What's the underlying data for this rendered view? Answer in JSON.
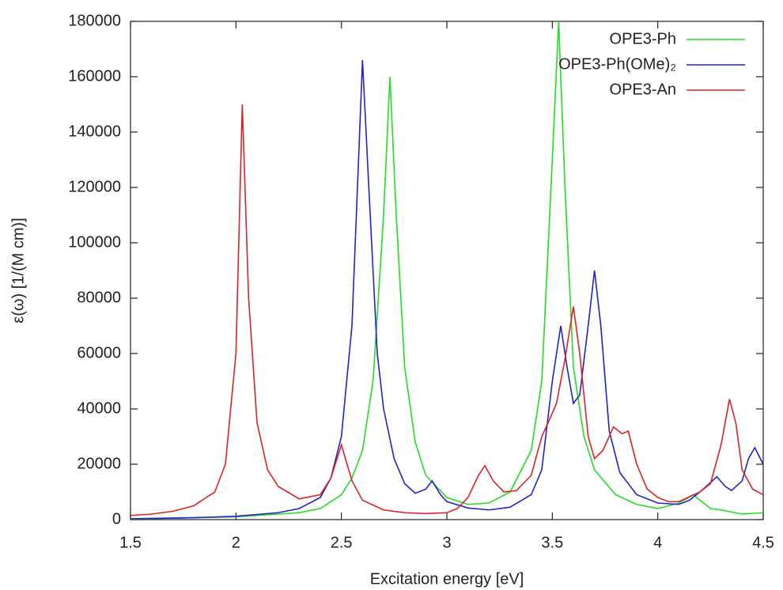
{
  "chart_data": {
    "type": "line",
    "xlabel": "Excitation energy [eV]",
    "ylabel": "ε(ω) [1/(M cm)]",
    "xlim": [
      1.5,
      4.5
    ],
    "ylim": [
      0,
      180000
    ],
    "xticks": [
      1.5,
      2,
      2.5,
      3,
      3.5,
      4,
      4.5
    ],
    "yticks": [
      0,
      20000,
      40000,
      60000,
      80000,
      100000,
      120000,
      140000,
      160000,
      180000
    ],
    "legend": "upper right",
    "series": [
      {
        "name": "OPE3-Ph",
        "color": "#22dd22",
        "x": [
          1.5,
          2.0,
          2.3,
          2.4,
          2.5,
          2.55,
          2.6,
          2.65,
          2.7,
          2.73,
          2.76,
          2.8,
          2.85,
          2.9,
          3.0,
          3.1,
          3.2,
          3.3,
          3.4,
          3.45,
          3.5,
          3.53,
          3.56,
          3.6,
          3.65,
          3.7,
          3.8,
          3.9,
          4.0,
          4.1,
          4.17,
          4.2,
          4.25,
          4.3,
          4.4,
          4.5
        ],
        "values": [
          200,
          1000,
          2500,
          4000,
          9000,
          15000,
          25000,
          50000,
          110000,
          160000,
          110000,
          55000,
          28000,
          16000,
          8000,
          5500,
          6000,
          10000,
          25000,
          50000,
          130000,
          180000,
          120000,
          55000,
          30000,
          18000,
          9000,
          5500,
          4000,
          6000,
          9000,
          7000,
          4000,
          3500,
          2000,
          2500
        ]
      },
      {
        "name": "OPE3-Ph(OMe)₂",
        "color": "#2222cc",
        "x": [
          1.5,
          1.8,
          2.0,
          2.2,
          2.3,
          2.4,
          2.45,
          2.5,
          2.55,
          2.6,
          2.63,
          2.67,
          2.7,
          2.75,
          2.8,
          2.85,
          2.9,
          2.93,
          2.97,
          3.0,
          3.1,
          3.2,
          3.3,
          3.4,
          3.45,
          3.5,
          3.54,
          3.57,
          3.6,
          3.63,
          3.67,
          3.7,
          3.73,
          3.77,
          3.82,
          3.9,
          4.0,
          4.1,
          4.15,
          4.2,
          4.23,
          4.28,
          4.32,
          4.35,
          4.4,
          4.43,
          4.46,
          4.5
        ],
        "values": [
          300,
          700,
          1200,
          2500,
          4000,
          8000,
          15000,
          30000,
          70000,
          166000,
          120000,
          60000,
          40000,
          22000,
          13000,
          9500,
          11000,
          14000,
          9000,
          6500,
          4200,
          3500,
          4500,
          9000,
          18000,
          50000,
          70000,
          55000,
          42000,
          45000,
          70000,
          90000,
          70000,
          32000,
          17000,
          9000,
          6000,
          5500,
          7000,
          10000,
          12000,
          15500,
          12000,
          10500,
          14000,
          22000,
          26000,
          20000
        ]
      },
      {
        "name": "OPE3-An",
        "color": "#dd2222",
        "x": [
          1.5,
          1.6,
          1.7,
          1.8,
          1.9,
          1.95,
          2.0,
          2.03,
          2.06,
          2.1,
          2.15,
          2.2,
          2.3,
          2.4,
          2.45,
          2.5,
          2.55,
          2.6,
          2.7,
          2.8,
          2.9,
          3.0,
          3.05,
          3.1,
          3.15,
          3.18,
          3.22,
          3.27,
          3.33,
          3.4,
          3.45,
          3.48,
          3.52,
          3.56,
          3.6,
          3.63,
          3.67,
          3.7,
          3.74,
          3.79,
          3.83,
          3.86,
          3.9,
          3.95,
          4.0,
          4.05,
          4.1,
          4.2,
          4.25,
          4.3,
          4.34,
          4.37,
          4.4,
          4.45,
          4.5
        ],
        "values": [
          1500,
          2000,
          3000,
          5000,
          10000,
          20000,
          60000,
          150000,
          80000,
          35000,
          18000,
          12000,
          7500,
          9000,
          15000,
          27000,
          14000,
          7000,
          3500,
          2500,
          2200,
          2500,
          4000,
          8000,
          16000,
          19500,
          14000,
          10000,
          10500,
          16000,
          30000,
          35000,
          42000,
          58000,
          77000,
          60000,
          30000,
          22000,
          25000,
          33500,
          31000,
          32000,
          20000,
          11000,
          8000,
          6500,
          6500,
          10000,
          13000,
          27000,
          43500,
          35000,
          18000,
          11000,
          9000
        ]
      }
    ]
  }
}
